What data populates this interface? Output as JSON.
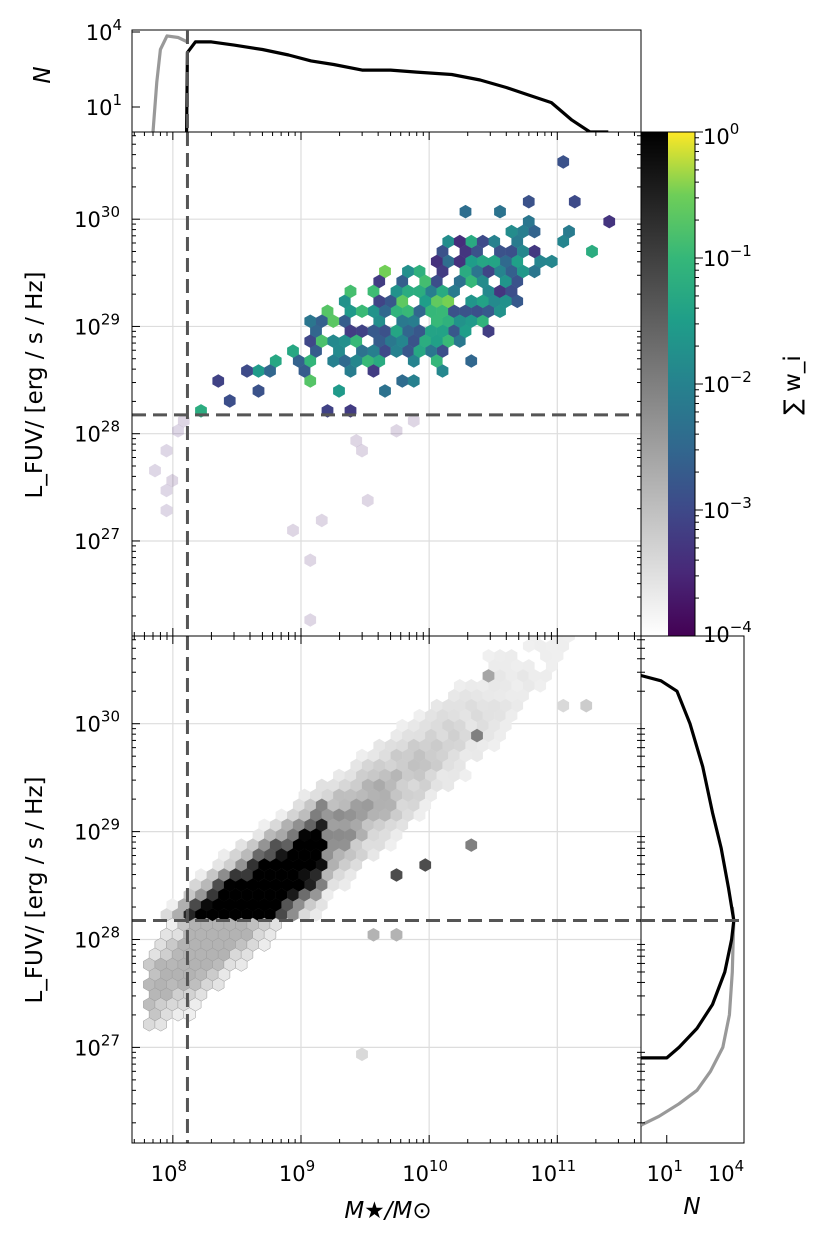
{
  "labels": {
    "xlabel": "M★/M⊙",
    "ylabel_top": "L_FUV/ [erg / s / Hz]",
    "ylabel_bottom": "L_FUV/ [erg / s / Hz]",
    "hist_top_ylabel": "N",
    "hist_right_xlabel": "N",
    "colorbar_label": "∑ w_i"
  },
  "colors": {
    "viridis_dark": "#440154",
    "viridis_mid": "#21918c",
    "viridis_light": "#fde725",
    "dashed_threshold": "#555555",
    "hist_black": "#000000",
    "hist_gray": "#999999"
  },
  "chart_data": [
    {
      "type": "line",
      "name": "top-histogram",
      "xscale": "log",
      "yscale": "log",
      "xlim": [
        48000000.0,
        450000000000.0
      ],
      "ylim": [
        1,
        10000
      ],
      "ytick_labels": [
        {
          "base": "10",
          "exp": "1",
          "value": 10
        },
        {
          "base": "10",
          "exp": "4",
          "value": 10000
        }
      ],
      "ylabel": "N",
      "series": [
        {
          "color": "#999999",
          "points": [
            [
              70000000.0,
              1
            ],
            [
              75000000.0,
              100
            ],
            [
              80000000.0,
              2000
            ],
            [
              90000000.0,
              7000
            ],
            [
              110000000.0,
              6000
            ],
            [
              130000000.0,
              4000
            ]
          ]
        },
        {
          "color": "#000000",
          "points": [
            [
              128000000.0,
              1
            ],
            [
              130000000.0,
              1500
            ],
            [
              150000000.0,
              4000
            ],
            [
              200000000.0,
              4000
            ],
            [
              300000000.0,
              3000
            ],
            [
              500000000.0,
              2000
            ],
            [
              800000000.0,
              1200
            ],
            [
              1200000000.0,
              700
            ],
            [
              1800000000.0,
              500
            ],
            [
              3000000000.0,
              300
            ],
            [
              5000000000.0,
              300
            ],
            [
              8000000000.0,
              250
            ],
            [
              15000000000.0,
              200
            ],
            [
              25000000000.0,
              120
            ],
            [
              40000000000.0,
              60
            ],
            [
              60000000000.0,
              30
            ],
            [
              90000000000.0,
              15
            ],
            [
              130000000000.0,
              3
            ],
            [
              180000000000.0,
              1
            ],
            [
              250000000000.0,
              1
            ]
          ]
        }
      ],
      "threshold_x": 130000000.0
    },
    {
      "type": "heatmap",
      "name": "weighted-hexbin",
      "xscale": "log",
      "yscale": "log",
      "xlim": [
        48000000.0,
        450000000000.0
      ],
      "ylim": [
        1.3e+26,
        6.5e+30
      ],
      "ylabel": "L_FUV/ [erg / s / Hz]",
      "ytick_labels": [
        {
          "base": "10",
          "exp": "27",
          "value": 1e+27
        },
        {
          "base": "10",
          "exp": "28",
          "value": 1e+28
        },
        {
          "base": "10",
          "exp": "29",
          "value": 1e+29
        },
        {
          "base": "10",
          "exp": "30",
          "value": 1e+30
        }
      ],
      "colormap": "viridis",
      "color_scale": "log",
      "clim": [
        0.0001,
        1
      ],
      "threshold_x": 130000000.0,
      "threshold_y": 1.5e+28,
      "clusters": [
        {
          "center": [
            6000000000.0,
            1e+29
          ],
          "spread": [
            0.55,
            0.35
          ],
          "count": 230,
          "min_weight": 0.0005,
          "max_weight": 0.15
        },
        {
          "center": [
            30000000000.0,
            4e+29
          ],
          "spread": [
            0.35,
            0.25
          ],
          "count": 80,
          "min_weight": 0.0003,
          "max_weight": 0.03
        }
      ],
      "points": [
        {
          "x": 110000000000.0,
          "y": 3.5e+30,
          "w": 0.001
        },
        {
          "x": 130000000000.0,
          "y": 1.5e+30,
          "w": 0.0008
        },
        {
          "x": 230000000000.0,
          "y": 1e+30,
          "w": 0.0004
        },
        {
          "x": 170000000000.0,
          "y": 5e+29,
          "w": 0.03
        },
        {
          "x": 300000000.0,
          "y": 2e+28,
          "w": 0.0009
        },
        {
          "x": 250000000.0,
          "y": 3e+28,
          "w": 0.0006
        },
        {
          "x": 400000000.0,
          "y": 3.5e+28,
          "w": 0.0008
        },
        {
          "x": 500000000.0,
          "y": 2.5e+28,
          "w": 0.001
        },
        {
          "x": 170000000.0,
          "y": 1.5e+28,
          "w": 0.03
        },
        {
          "x": 1500000000.0,
          "y": 1.5e+28,
          "w": 0.0006
        },
        {
          "x": 2500000000.0,
          "y": 1.5e+28,
          "w": 0.0005
        },
        {
          "x": 100000000.0,
          "y": 1e+28,
          "w": 0.00025
        },
        {
          "x": 90000000.0,
          "y": 7e+27,
          "w": 0.00025
        },
        {
          "x": 80000000.0,
          "y": 5e+27,
          "w": 0.00025
        },
        {
          "x": 90000000.0,
          "y": 3e+27,
          "w": 0.00025
        },
        {
          "x": 85000000.0,
          "y": 2e+27,
          "w": 0.00025
        },
        {
          "x": 100000000.0,
          "y": 4e+27,
          "w": 0.0002
        },
        {
          "x": 120000000.0,
          "y": 1.2e+28,
          "w": 0.0002
        },
        {
          "x": 2500000000.0,
          "y": 9e+27,
          "w": 0.0002
        },
        {
          "x": 3000000000.0,
          "y": 7e+27,
          "w": 0.0002
        },
        {
          "x": 6000000000.0,
          "y": 1e+28,
          "w": 0.0002
        },
        {
          "x": 7000000000.0,
          "y": 1.2e+28,
          "w": 0.0002
        },
        {
          "x": 3000000000.0,
          "y": 2.5e+27,
          "w": 0.0002
        },
        {
          "x": 1500000000.0,
          "y": 1.7e+27,
          "w": 0.0002
        },
        {
          "x": 800000000.0,
          "y": 1.3e+27,
          "w": 0.0002
        },
        {
          "x": 1300000000.0,
          "y": 7e+26,
          "w": 0.0002
        },
        {
          "x": 1200000000.0,
          "y": 1.7e+26,
          "w": 0.0002
        }
      ]
    },
    {
      "type": "heatmap",
      "name": "count-hexbin",
      "xscale": "log",
      "yscale": "log",
      "xlim": [
        48000000.0,
        450000000000.0
      ],
      "ylim": [
        1.3e+26,
        6.5e+30
      ],
      "ylabel": "L_FUV/ [erg / s / Hz]",
      "ytick_labels": [
        {
          "base": "10",
          "exp": "27",
          "value": 1e+27
        },
        {
          "base": "10",
          "exp": "28",
          "value": 1e+28
        },
        {
          "base": "10",
          "exp": "29",
          "value": 1e+29
        },
        {
          "base": "10",
          "exp": "30",
          "value": 1e+30
        }
      ],
      "xtick_labels": [
        {
          "base": "10",
          "exp": "8",
          "value": 100000000.0
        },
        {
          "base": "10",
          "exp": "9",
          "value": 1000000000.0
        },
        {
          "base": "10",
          "exp": "10",
          "value": 10000000000.0
        },
        {
          "base": "10",
          "exp": "11",
          "value": 100000000000.0
        }
      ],
      "xlabel": "M★/M⊙",
      "colormap": "gray_r",
      "threshold_x": 130000000.0,
      "threshold_y": 1.5e+28,
      "relation": {
        "log_l_at_log_m8": 27.7,
        "slope": 1.0,
        "scatter_dex": 0.25
      },
      "mass_density": {
        "peak_log_m": 8.3,
        "decline_per_dex": 0.55
      },
      "outliers": [
        {
          "x": 30000000000.0,
          "y": 2.5e+30,
          "v": 0.35
        },
        {
          "x": 120000000000.0,
          "y": 1.6e+30,
          "v": 0.15
        },
        {
          "x": 170000000000.0,
          "y": 1.4e+30,
          "v": 0.2
        },
        {
          "x": 25000000000.0,
          "y": 8e+29,
          "v": 0.5
        },
        {
          "x": 4000000000.0,
          "y": 1e+28,
          "v": 0.3
        },
        {
          "x": 5500000000.0,
          "y": 1e+28,
          "v": 0.3
        },
        {
          "x": 6000000000.0,
          "y": 4e+28,
          "v": 0.7
        },
        {
          "x": 10000000000.0,
          "y": 5e+28,
          "v": 0.7
        },
        {
          "x": 20000000000.0,
          "y": 7e+28,
          "v": 0.5
        },
        {
          "x": 3000000000.0,
          "y": 8.5e+26,
          "v": 0.15
        }
      ]
    },
    {
      "type": "line",
      "name": "right-histogram",
      "xscale": "log",
      "yscale": "log",
      "xlim": [
        1,
        10000
      ],
      "ylim": [
        1.3e+26,
        6.5e+30
      ],
      "xlabel": "N",
      "xtick_labels": [
        {
          "base": "10",
          "exp": "1",
          "value": 10
        },
        {
          "base": "10",
          "exp": "4",
          "value": 10000
        }
      ],
      "threshold_y": 1.5e+28,
      "series": [
        {
          "color": "#999999",
          "points": [
            [
              1,
              1.9e+26
            ],
            [
              5,
              2.3e+26
            ],
            [
              30,
              3e+26
            ],
            [
              150,
              4e+26
            ],
            [
              500,
              6e+26
            ],
            [
              1500,
              1e+27
            ],
            [
              2700,
              2e+27
            ],
            [
              3500,
              5e+27
            ],
            [
              3800,
              1e+28
            ],
            [
              4000,
              1.5e+28
            ],
            [
              3500,
              2e+28
            ]
          ]
        },
        {
          "color": "#000000",
          "points": [
            [
              1,
              8e+26
            ],
            [
              10,
              8e+26
            ],
            [
              30,
              1e+27
            ],
            [
              150,
              1.5e+27
            ],
            [
              600,
              2.5e+27
            ],
            [
              1800,
              5e+27
            ],
            [
              3300,
              1e+28
            ],
            [
              4000,
              1.5e+28
            ],
            [
              2500,
              3e+28
            ],
            [
              1300,
              7e+28
            ],
            [
              600,
              1.5e+29
            ],
            [
              250,
              4e+29
            ],
            [
              80,
              1e+30
            ],
            [
              25,
              2e+30
            ],
            [
              6,
              2.5e+30
            ],
            [
              1,
              2.8e+30
            ]
          ]
        }
      ]
    },
    {
      "type": "colorbar",
      "name": "weight-colorbar",
      "colormap": "gray_r + viridis",
      "scale": "log",
      "clim": [
        0.0001,
        1
      ],
      "tick_labels": [
        {
          "base": "10",
          "exp": "0",
          "value": 1
        },
        {
          "base": "10",
          "exp": "−1",
          "value": 0.1
        },
        {
          "base": "10",
          "exp": "−2",
          "value": 0.01
        },
        {
          "base": "10",
          "exp": "−3",
          "value": 0.001
        },
        {
          "base": "10",
          "exp": "−4",
          "value": 0.0001
        }
      ],
      "label": "∑ w_i"
    }
  ]
}
